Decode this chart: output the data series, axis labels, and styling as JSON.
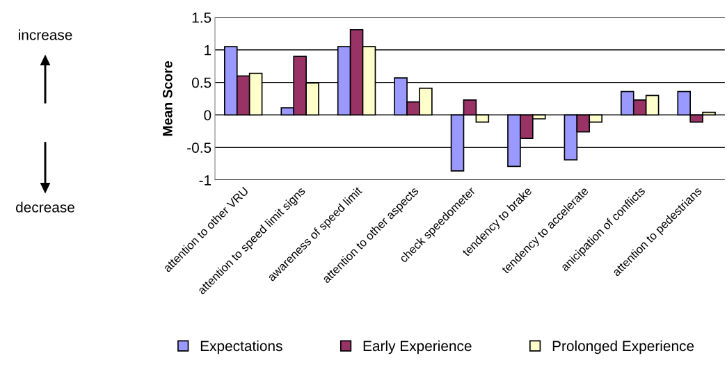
{
  "chart_data": {
    "type": "bar",
    "ylabel": "Mean Score",
    "categories": [
      "attention to other VRU",
      "attention to speed limit signs",
      "awareness of speed limit",
      "attention to other aspects",
      "check speedometer",
      "tendency to brake",
      "tendency to accelerate",
      "anicipation of conflicts",
      "attention to pedestrians"
    ],
    "series": [
      {
        "name": "Expectations",
        "color": "#9999ff",
        "values": [
          1.05,
          0.11,
          1.05,
          0.57,
          -0.86,
          -0.79,
          -0.69,
          0.36,
          0.36
        ]
      },
      {
        "name": "Early Experience",
        "color": "#993366",
        "values": [
          0.6,
          0.9,
          1.31,
          0.2,
          0.23,
          -0.36,
          -0.26,
          0.23,
          -0.11
        ]
      },
      {
        "name": "Prolonged Experience",
        "color": "#ffffcc",
        "values": [
          0.64,
          0.49,
          1.05,
          0.41,
          -0.11,
          -0.06,
          -0.11,
          0.3,
          0.04
        ]
      }
    ],
    "ylim": [
      -1,
      1.5
    ],
    "yticks": [
      -1,
      -0.5,
      0,
      0.5,
      1,
      1.5
    ],
    "grid": "y",
    "legend": "bottom",
    "annotations": [
      "increase",
      "decrease"
    ]
  }
}
